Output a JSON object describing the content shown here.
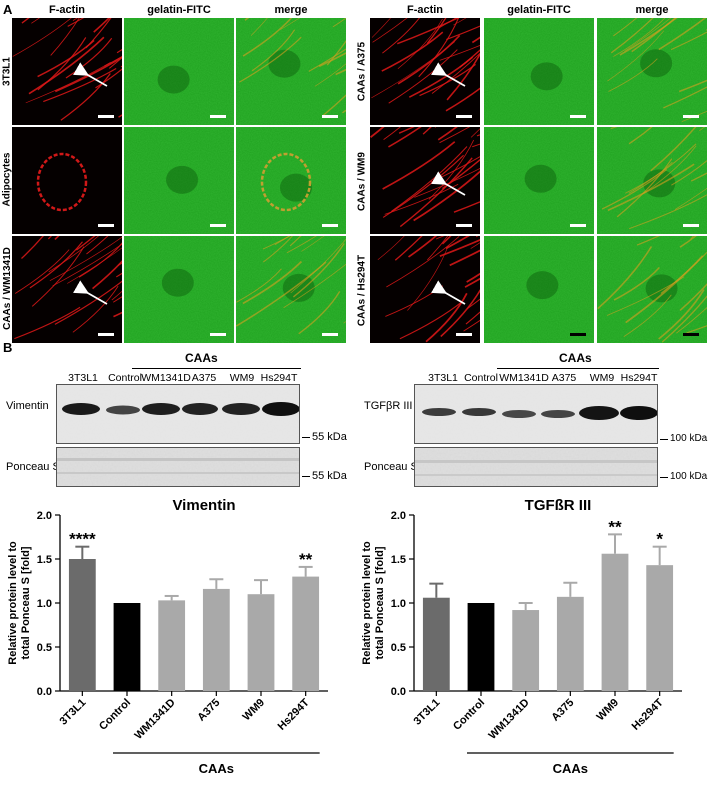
{
  "panel_a": {
    "letter": "A",
    "column_headers": [
      "F-actin",
      "gelatin-FITC",
      "merge"
    ],
    "left_rows": [
      "3T3L1",
      "Adipocytes",
      "CAAs / WM1341D"
    ],
    "right_rows": [
      "CAAs / A375",
      "CAAs / WM9",
      "CAAs / Hs294T"
    ]
  },
  "panel_b": {
    "letter": "B",
    "left_blot": {
      "lanes": [
        "3T3L1",
        "Control",
        "WM1341D",
        "A375",
        "WM9",
        "Hs294T"
      ],
      "group_label": "CAAs",
      "row1_label": "Vimentin",
      "row2_label": "Ponceau S",
      "marker1": "55 kDa",
      "marker2": "55 kDa"
    },
    "right_blot": {
      "lanes": [
        "3T3L1",
        "Control",
        "WM1341D",
        "A375",
        "WM9",
        "Hs294T"
      ],
      "group_label": "CAAs",
      "row1_label": "TGFβR III",
      "row2_label": "Ponceau S",
      "marker1": "100 kDa",
      "marker2": "100 kDa"
    }
  },
  "chart_data": [
    {
      "type": "bar",
      "title": "Vimentin",
      "ylabel": "Relative protein level to total Ponceau S [fold]",
      "xlabel": "",
      "categories": [
        "3T3L1",
        "Control",
        "WM1341D",
        "A375",
        "WM9",
        "Hs294T"
      ],
      "values": [
        1.5,
        1.0,
        1.03,
        1.16,
        1.1,
        1.3
      ],
      "errors": [
        0.14,
        0.0,
        0.05,
        0.11,
        0.16,
        0.11
      ],
      "significance": [
        "****",
        "",
        "",
        "",
        "",
        "**"
      ],
      "bar_colors": [
        "#6b6b6b",
        "#000000",
        "#a9a9a9",
        "#a9a9a9",
        "#a9a9a9",
        "#a9a9a9"
      ],
      "ylim": [
        0.0,
        2.0
      ],
      "yticks": [
        "0.0",
        "0.5",
        "1.0",
        "1.5",
        "2.0"
      ],
      "group_label": "CAAs"
    },
    {
      "type": "bar",
      "title": "TGFßR III",
      "ylabel": "Relative protein level to total Ponceau S [fold]",
      "xlabel": "",
      "categories": [
        "3T3L1",
        "Control",
        "WM1341D",
        "A375",
        "WM9",
        "Hs294T"
      ],
      "values": [
        1.06,
        1.0,
        0.92,
        1.07,
        1.56,
        1.43
      ],
      "errors": [
        0.16,
        0.0,
        0.08,
        0.16,
        0.22,
        0.21
      ],
      "significance": [
        "",
        "",
        "",
        "",
        "**",
        "*"
      ],
      "bar_colors": [
        "#6b6b6b",
        "#000000",
        "#a9a9a9",
        "#a9a9a9",
        "#a9a9a9",
        "#a9a9a9"
      ],
      "ylim": [
        0.0,
        2.0
      ],
      "yticks": [
        "0.0",
        "0.5",
        "1.0",
        "1.5",
        "2.0"
      ],
      "group_label": "CAAs"
    }
  ]
}
